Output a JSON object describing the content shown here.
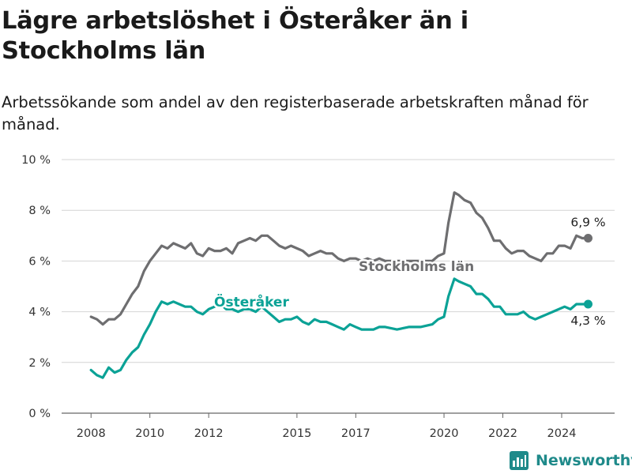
{
  "title": "Lägre arbetslöshet i Österåker än i Stockholms län",
  "subtitle": "Arbetssökande som andel av den registerbaserade arbetskraften månad för månad.",
  "brand": {
    "name": "Newsworthy",
    "icon": "newsworthy-logo-icon",
    "color": "#1f8a8a"
  },
  "chart_data": {
    "type": "line",
    "title": "Lägre arbetslöshet i Österåker än i Stockholms län",
    "subtitle": "Arbetssökande som andel av den registerbaserade arbetskraften månad för månad.",
    "xlabel": "",
    "ylabel": "",
    "xlim": [
      2007.0,
      2025.8
    ],
    "ylim": [
      0,
      10
    ],
    "x_ticks": [
      2008,
      2010,
      2012,
      2015,
      2017,
      2020,
      2022,
      2024
    ],
    "y_ticks": [
      0,
      2,
      4,
      6,
      8,
      10
    ],
    "y_tick_labels": [
      "0 %",
      "2 %",
      "4 %",
      "6 %",
      "8 %",
      "10 %"
    ],
    "grid": "horizontal",
    "series": [
      {
        "name": "Stockholms län",
        "color": "#6e6e70",
        "end_label": "6,9 %",
        "points": [
          [
            2008.0,
            3.8
          ],
          [
            2008.2,
            3.7
          ],
          [
            2008.4,
            3.5
          ],
          [
            2008.6,
            3.7
          ],
          [
            2008.8,
            3.7
          ],
          [
            2009.0,
            3.9
          ],
          [
            2009.2,
            4.3
          ],
          [
            2009.4,
            4.7
          ],
          [
            2009.6,
            5.0
          ],
          [
            2009.8,
            5.6
          ],
          [
            2010.0,
            6.0
          ],
          [
            2010.2,
            6.3
          ],
          [
            2010.4,
            6.6
          ],
          [
            2010.6,
            6.5
          ],
          [
            2010.8,
            6.7
          ],
          [
            2011.0,
            6.6
          ],
          [
            2011.2,
            6.5
          ],
          [
            2011.4,
            6.7
          ],
          [
            2011.6,
            6.3
          ],
          [
            2011.8,
            6.2
          ],
          [
            2012.0,
            6.5
          ],
          [
            2012.2,
            6.4
          ],
          [
            2012.4,
            6.4
          ],
          [
            2012.6,
            6.5
          ],
          [
            2012.8,
            6.3
          ],
          [
            2013.0,
            6.7
          ],
          [
            2013.2,
            6.8
          ],
          [
            2013.4,
            6.9
          ],
          [
            2013.6,
            6.8
          ],
          [
            2013.8,
            7.0
          ],
          [
            2014.0,
            7.0
          ],
          [
            2014.2,
            6.8
          ],
          [
            2014.4,
            6.6
          ],
          [
            2014.6,
            6.5
          ],
          [
            2014.8,
            6.6
          ],
          [
            2015.0,
            6.5
          ],
          [
            2015.2,
            6.4
          ],
          [
            2015.4,
            6.2
          ],
          [
            2015.6,
            6.3
          ],
          [
            2015.8,
            6.4
          ],
          [
            2016.0,
            6.3
          ],
          [
            2016.2,
            6.3
          ],
          [
            2016.4,
            6.1
          ],
          [
            2016.6,
            6.0
          ],
          [
            2016.8,
            6.1
          ],
          [
            2017.0,
            6.1
          ],
          [
            2017.2,
            6.0
          ],
          [
            2017.4,
            6.1
          ],
          [
            2017.6,
            6.0
          ],
          [
            2017.8,
            6.1
          ],
          [
            2018.0,
            6.0
          ],
          [
            2018.4,
            6.0
          ],
          [
            2018.8,
            6.0
          ],
          [
            2019.2,
            6.0
          ],
          [
            2019.6,
            6.0
          ],
          [
            2019.8,
            6.2
          ],
          [
            2020.0,
            6.3
          ],
          [
            2020.15,
            7.5
          ],
          [
            2020.35,
            8.7
          ],
          [
            2020.5,
            8.6
          ],
          [
            2020.7,
            8.4
          ],
          [
            2020.9,
            8.3
          ],
          [
            2021.1,
            7.9
          ],
          [
            2021.3,
            7.7
          ],
          [
            2021.5,
            7.3
          ],
          [
            2021.7,
            6.8
          ],
          [
            2021.9,
            6.8
          ],
          [
            2022.1,
            6.5
          ],
          [
            2022.3,
            6.3
          ],
          [
            2022.5,
            6.4
          ],
          [
            2022.7,
            6.4
          ],
          [
            2022.9,
            6.2
          ],
          [
            2023.1,
            6.1
          ],
          [
            2023.3,
            6.0
          ],
          [
            2023.5,
            6.3
          ],
          [
            2023.7,
            6.3
          ],
          [
            2023.9,
            6.6
          ],
          [
            2024.1,
            6.6
          ],
          [
            2024.3,
            6.5
          ],
          [
            2024.5,
            7.0
          ],
          [
            2024.7,
            6.9
          ],
          [
            2024.9,
            6.9
          ]
        ]
      },
      {
        "name": "Österåker",
        "color": "#0ba296",
        "end_label": "4,3 %",
        "points": [
          [
            2008.0,
            1.7
          ],
          [
            2008.2,
            1.5
          ],
          [
            2008.4,
            1.4
          ],
          [
            2008.6,
            1.8
          ],
          [
            2008.8,
            1.6
          ],
          [
            2009.0,
            1.7
          ],
          [
            2009.2,
            2.1
          ],
          [
            2009.4,
            2.4
          ],
          [
            2009.6,
            2.6
          ],
          [
            2009.8,
            3.1
          ],
          [
            2010.0,
            3.5
          ],
          [
            2010.2,
            4.0
          ],
          [
            2010.4,
            4.4
          ],
          [
            2010.6,
            4.3
          ],
          [
            2010.8,
            4.4
          ],
          [
            2011.0,
            4.3
          ],
          [
            2011.2,
            4.2
          ],
          [
            2011.4,
            4.2
          ],
          [
            2011.6,
            4.0
          ],
          [
            2011.8,
            3.9
          ],
          [
            2012.0,
            4.1
          ],
          [
            2012.2,
            4.2
          ],
          [
            2012.4,
            4.3
          ],
          [
            2012.6,
            4.1
          ],
          [
            2012.8,
            4.1
          ],
          [
            2013.0,
            4.0
          ],
          [
            2013.2,
            4.1
          ],
          [
            2013.4,
            4.1
          ],
          [
            2013.6,
            4.0
          ],
          [
            2013.8,
            4.2
          ],
          [
            2014.0,
            4.0
          ],
          [
            2014.2,
            3.8
          ],
          [
            2014.4,
            3.6
          ],
          [
            2014.6,
            3.7
          ],
          [
            2014.8,
            3.7
          ],
          [
            2015.0,
            3.8
          ],
          [
            2015.2,
            3.6
          ],
          [
            2015.4,
            3.5
          ],
          [
            2015.6,
            3.7
          ],
          [
            2015.8,
            3.6
          ],
          [
            2016.0,
            3.6
          ],
          [
            2016.2,
            3.5
          ],
          [
            2016.4,
            3.4
          ],
          [
            2016.6,
            3.3
          ],
          [
            2016.8,
            3.5
          ],
          [
            2017.0,
            3.4
          ],
          [
            2017.2,
            3.3
          ],
          [
            2017.4,
            3.3
          ],
          [
            2017.6,
            3.3
          ],
          [
            2017.8,
            3.4
          ],
          [
            2018.0,
            3.4
          ],
          [
            2018.4,
            3.3
          ],
          [
            2018.8,
            3.4
          ],
          [
            2019.2,
            3.4
          ],
          [
            2019.6,
            3.5
          ],
          [
            2019.8,
            3.7
          ],
          [
            2020.0,
            3.8
          ],
          [
            2020.15,
            4.6
          ],
          [
            2020.35,
            5.3
          ],
          [
            2020.5,
            5.2
          ],
          [
            2020.7,
            5.1
          ],
          [
            2020.9,
            5.0
          ],
          [
            2021.1,
            4.7
          ],
          [
            2021.3,
            4.7
          ],
          [
            2021.5,
            4.5
          ],
          [
            2021.7,
            4.2
          ],
          [
            2021.9,
            4.2
          ],
          [
            2022.1,
            3.9
          ],
          [
            2022.3,
            3.9
          ],
          [
            2022.5,
            3.9
          ],
          [
            2022.7,
            4.0
          ],
          [
            2022.9,
            3.8
          ],
          [
            2023.1,
            3.7
          ],
          [
            2023.3,
            3.8
          ],
          [
            2023.5,
            3.9
          ],
          [
            2023.7,
            4.0
          ],
          [
            2023.9,
            4.1
          ],
          [
            2024.1,
            4.2
          ],
          [
            2024.3,
            4.1
          ],
          [
            2024.5,
            4.3
          ],
          [
            2024.7,
            4.3
          ],
          [
            2024.9,
            4.3
          ]
        ]
      }
    ]
  }
}
